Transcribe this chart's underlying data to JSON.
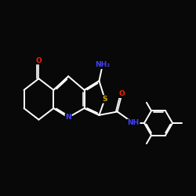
{
  "bg": "#080808",
  "bond_color": "#ffffff",
  "N_color": "#4040ff",
  "O_color": "#ff2200",
  "S_color": "#ccaa00",
  "lw": 1.4,
  "dlw": 1.2,
  "fs": 6.5,
  "xlim": [
    -3.8,
    4.8
  ],
  "ylim": [
    -2.6,
    2.6
  ]
}
